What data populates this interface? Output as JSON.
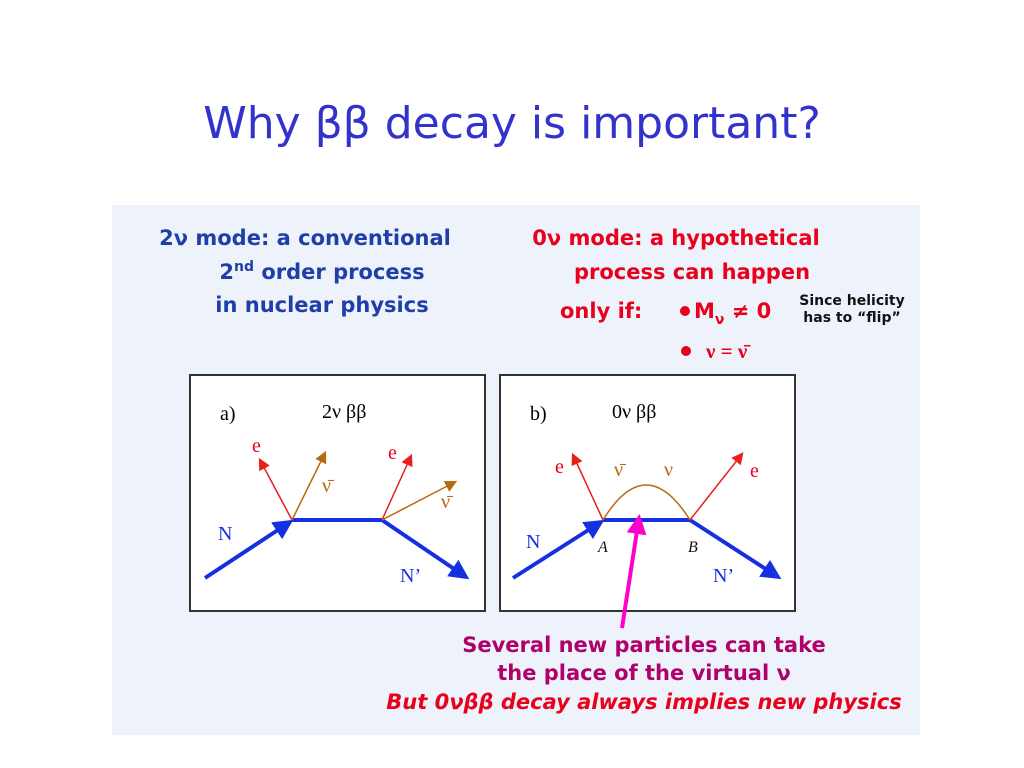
{
  "title": "Why ββ decay is important?",
  "left_heading": {
    "line1": "2ν mode: a conventional",
    "line2_num": "2",
    "line2_sup": "nd",
    "line2_rest": " order process",
    "line3": "in nuclear physics"
  },
  "right_heading": {
    "line1": "0ν mode: a hypothetical",
    "line2": "process can happen",
    "line3": "only if:",
    "condition1_main": "M",
    "condition1_sub": "ν",
    "condition1_rest": " ≠ 0",
    "note_line1": "Since helicity",
    "note_line2": "has to “flip”",
    "condition2": "ν = ν̄"
  },
  "panel_a": {
    "label": "a)",
    "process": "2ν ββ",
    "e1": "e",
    "nubar1": "ν̄",
    "e2": "e",
    "nubar2": "ν̄",
    "n_in": "N",
    "n_out": "N’"
  },
  "panel_b": {
    "label": "b)",
    "process": "0ν ββ",
    "e1": "e",
    "nubar": "ν̄",
    "nu": "ν",
    "e2": "e",
    "n_in": "N",
    "vertex_a": "A",
    "vertex_b": "B",
    "n_out": "N’"
  },
  "bottom": {
    "line1": "Several new particles can take",
    "line2": "the place of the virtual ν",
    "line3": "But 0νββ decay always implies new physics"
  }
}
